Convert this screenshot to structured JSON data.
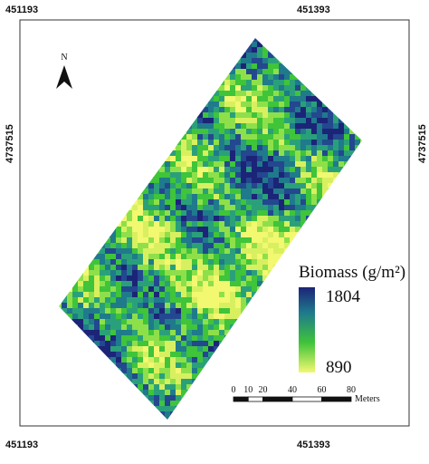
{
  "coords": {
    "top_left": "451193",
    "top_right": "451393",
    "bottom_left": "451193",
    "bottom_right": "451393",
    "left": "4737515",
    "right": "4737515"
  },
  "north": "N",
  "legend": {
    "title": "Biomass (g/m²)",
    "max": "1804",
    "min": "890"
  },
  "scale_bar": {
    "ticks": [
      0,
      10,
      20,
      40,
      60,
      80
    ],
    "unit": "Meters"
  }
}
